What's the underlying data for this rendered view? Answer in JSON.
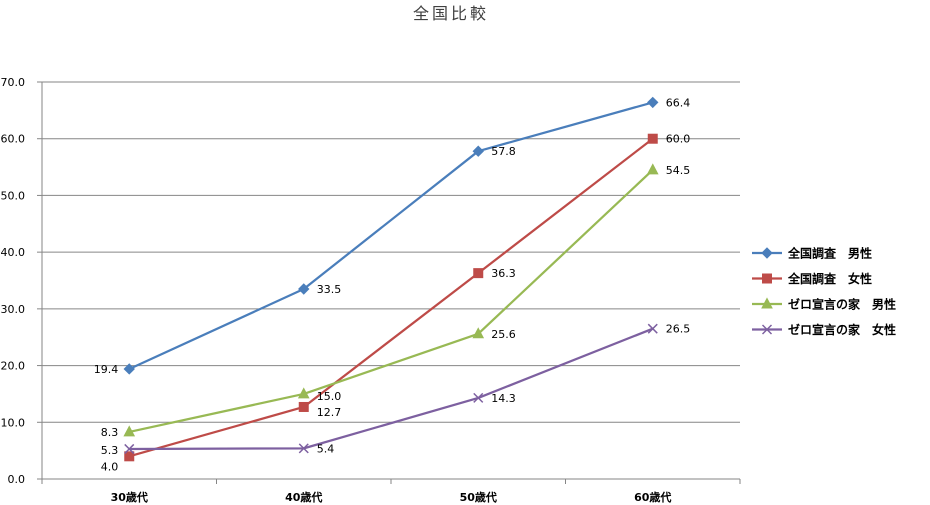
{
  "chart_data": {
    "type": "line",
    "title": "全国比較",
    "xlabel": "",
    "ylabel": "",
    "categories": [
      "30歳代",
      "40歳代",
      "50歳代",
      "60歳代"
    ],
    "ylim": [
      0,
      70
    ],
    "y_ticks": [
      "0.0",
      "10.0",
      "20.0",
      "30.0",
      "40.0",
      "50.0",
      "60.0",
      "70.0"
    ],
    "grid": true,
    "legend_position": "right",
    "series": [
      {
        "name": "全国調査　男性",
        "values": [
          19.4,
          33.5,
          57.8,
          66.4
        ],
        "labels": [
          "19.4",
          "33.5",
          "57.8",
          "66.4"
        ],
        "color": "#4a7ebb",
        "marker": "diamond"
      },
      {
        "name": "全国調査　女性",
        "values": [
          4.0,
          12.7,
          36.3,
          60.0
        ],
        "labels": [
          "4.0",
          "12.7",
          "36.3",
          "60.0"
        ],
        "color": "#be4b48",
        "marker": "square"
      },
      {
        "name": "ゼロ宣言の家　男性",
        "values": [
          8.3,
          15.0,
          25.6,
          54.5
        ],
        "labels": [
          "8.3",
          "15.0",
          "25.6",
          "54.5"
        ],
        "color": "#98b954",
        "marker": "triangle"
      },
      {
        "name": "ゼロ宣言の家　女性",
        "values": [
          5.3,
          5.4,
          14.3,
          26.5
        ],
        "labels": [
          "5.3",
          "5.4",
          "14.3",
          "26.5"
        ],
        "color": "#7d60a0",
        "marker": "x"
      }
    ]
  }
}
